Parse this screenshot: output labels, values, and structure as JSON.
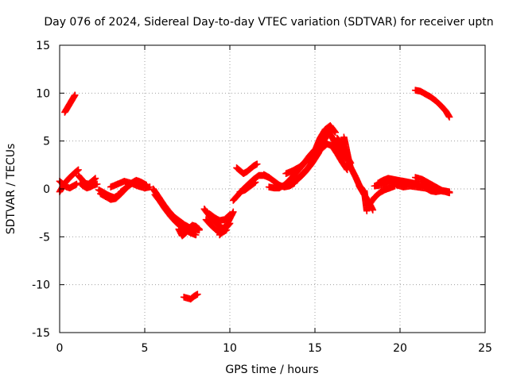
{
  "chart_data": {
    "type": "scatter",
    "title": "Day 076 of 2024, Sidereal Day-to-day VTEC variation (SDTVAR) for receiver uptn",
    "xlabel": "GPS time / hours",
    "ylabel": "SDTVAR / TECUs",
    "xlim": [
      0,
      25
    ],
    "ylim": [
      -15,
      15
    ],
    "x_ticks": [
      0,
      5,
      10,
      15,
      20,
      25
    ],
    "x_tick_labels": [
      "0",
      "5",
      "10",
      "15",
      "20",
      "25"
    ],
    "y_ticks": [
      -15,
      -10,
      -5,
      0,
      5,
      10,
      15
    ],
    "y_tick_labels": [
      "-15",
      "-10",
      "-5",
      "0",
      "5",
      "10",
      "15"
    ],
    "grid": true,
    "marker": "plus",
    "series_color": "#ff0000",
    "tracks": [
      {
        "name": "t1",
        "x": [
          0.0,
          0.3,
          0.6,
          0.9,
          1.1
        ],
        "y": [
          -0.3,
          0.6,
          1.2,
          1.7,
          2.0
        ]
      },
      {
        "name": "t2",
        "x": [
          0.0,
          0.2,
          0.4,
          0.6,
          0.8,
          1.0
        ],
        "y": [
          0.8,
          0.5,
          0.2,
          0.1,
          0.3,
          0.5
        ]
      },
      {
        "name": "t3",
        "x": [
          0.3,
          0.5,
          0.7,
          0.9
        ],
        "y": [
          8.0,
          8.6,
          9.2,
          9.8
        ]
      },
      {
        "name": "t4",
        "x": [
          1.1,
          1.3,
          1.5,
          1.7,
          1.9,
          2.1
        ],
        "y": [
          1.4,
          1.0,
          0.6,
          0.5,
          0.8,
          1.1
        ]
      },
      {
        "name": "t5",
        "x": [
          1.2,
          1.4,
          1.6,
          1.8,
          2.0,
          2.2
        ],
        "y": [
          0.6,
          0.3,
          0.1,
          0.2,
          0.4,
          0.5
        ]
      },
      {
        "name": "t6",
        "x": [
          2.3,
          2.6,
          2.9,
          3.2,
          3.5,
          3.8,
          4.1,
          4.4
        ],
        "y": [
          -0.1,
          -0.4,
          -0.7,
          -0.9,
          -0.6,
          -0.1,
          0.4,
          0.7
        ]
      },
      {
        "name": "t7",
        "x": [
          2.4,
          2.7,
          3.0,
          3.3,
          3.6,
          3.9
        ],
        "y": [
          -0.5,
          -0.8,
          -1.1,
          -1.0,
          -0.5,
          0.1
        ]
      },
      {
        "name": "t8",
        "x": [
          3.0,
          3.4,
          3.8,
          4.2,
          4.6,
          5.0,
          5.3
        ],
        "y": [
          0.2,
          0.5,
          0.8,
          0.6,
          0.3,
          0.1,
          0.2
        ]
      },
      {
        "name": "t9",
        "x": [
          3.6,
          3.9,
          4.2,
          4.5,
          4.8,
          5.1
        ],
        "y": [
          -0.3,
          0.1,
          0.6,
          0.9,
          0.7,
          0.4
        ]
      },
      {
        "name": "t10",
        "x": [
          5.5,
          5.8,
          6.1,
          6.4,
          6.7,
          7.0,
          7.3,
          7.6,
          7.9,
          8.2
        ],
        "y": [
          0.0,
          -0.8,
          -1.6,
          -2.3,
          -2.9,
          -3.3,
          -3.7,
          -4.0,
          -4.2,
          -4.3
        ]
      },
      {
        "name": "t11",
        "x": [
          5.6,
          5.9,
          6.2,
          6.5,
          6.8,
          7.1,
          7.4,
          7.7,
          8.0
        ],
        "y": [
          -0.6,
          -1.3,
          -2.1,
          -2.8,
          -3.4,
          -3.9,
          -4.3,
          -4.6,
          -4.8
        ]
      },
      {
        "name": "t12",
        "x": [
          7.0,
          7.2,
          7.4,
          7.6,
          7.8,
          8.0,
          8.2
        ],
        "y": [
          -4.2,
          -4.9,
          -4.6,
          -4.1,
          -3.8,
          -3.9,
          -4.2
        ]
      },
      {
        "name": "t13",
        "x": [
          7.3,
          7.5,
          7.7,
          7.9,
          8.1
        ],
        "y": [
          -11.3,
          -11.4,
          -11.5,
          -11.2,
          -11.0
        ]
      },
      {
        "name": "t14",
        "x": [
          8.5,
          8.8,
          9.1,
          9.4,
          9.7,
          10.0
        ],
        "y": [
          -2.1,
          -2.8,
          -3.4,
          -3.9,
          -4.2,
          -3.6
        ]
      },
      {
        "name": "t15",
        "x": [
          8.6,
          8.9,
          9.2,
          9.5,
          9.8
        ],
        "y": [
          -3.2,
          -3.8,
          -4.3,
          -4.6,
          -4.3
        ]
      },
      {
        "name": "t16",
        "x": [
          8.8,
          9.1,
          9.4,
          9.7,
          10.0
        ],
        "y": [
          -2.6,
          -3.0,
          -3.3,
          -3.2,
          -2.7
        ]
      },
      {
        "name": "t17",
        "x": [
          9.4,
          9.6,
          9.8,
          10.0,
          10.2
        ],
        "y": [
          -4.8,
          -4.4,
          -3.8,
          -3.1,
          -2.4
        ]
      },
      {
        "name": "t18",
        "x": [
          10.2,
          10.5,
          10.8,
          11.1,
          11.4,
          11.7,
          12.0,
          12.3
        ],
        "y": [
          -1.2,
          -0.6,
          0.0,
          0.5,
          1.0,
          1.4,
          1.4,
          1.2
        ]
      },
      {
        "name": "t19",
        "x": [
          10.4,
          10.6,
          10.8,
          11.0,
          11.2,
          11.4,
          11.6
        ],
        "y": [
          2.2,
          1.9,
          1.6,
          1.8,
          2.1,
          2.4,
          2.6
        ]
      },
      {
        "name": "t20",
        "x": [
          10.6,
          10.9,
          11.2,
          11.5
        ],
        "y": [
          -0.3,
          -0.1,
          0.3,
          0.7
        ]
      },
      {
        "name": "t21",
        "x": [
          12.0,
          12.3,
          12.6,
          12.9,
          13.2,
          13.5,
          13.8
        ],
        "y": [
          1.5,
          1.2,
          0.8,
          0.4,
          0.2,
          0.3,
          0.6
        ]
      },
      {
        "name": "t22",
        "x": [
          12.3,
          12.6,
          12.9,
          13.2,
          13.5,
          13.8,
          14.1,
          14.4,
          14.7,
          15.0
        ],
        "y": [
          0.2,
          0.1,
          0.1,
          0.4,
          0.9,
          1.5,
          2.1,
          2.8,
          3.5,
          4.1
        ]
      },
      {
        "name": "t23",
        "x": [
          13.3,
          13.7,
          14.1,
          14.5,
          14.9,
          15.3,
          15.6
        ],
        "y": [
          1.6,
          1.9,
          2.3,
          2.9,
          3.7,
          4.6,
          5.4
        ]
      },
      {
        "name": "t24",
        "x": [
          13.6,
          14.0,
          14.4,
          14.8,
          15.2,
          15.5,
          15.8
        ],
        "y": [
          0.5,
          1.1,
          1.8,
          2.7,
          3.8,
          5.0,
          5.8
        ]
      },
      {
        "name": "t25",
        "x": [
          14.0,
          14.4,
          14.8,
          15.2,
          15.5,
          15.8
        ],
        "y": [
          1.0,
          1.7,
          2.6,
          3.7,
          5.0,
          6.2
        ]
      },
      {
        "name": "t26",
        "x": [
          14.6,
          15.0,
          15.3,
          15.6,
          15.9,
          16.2
        ],
        "y": [
          2.9,
          4.0,
          5.3,
          6.2,
          6.6,
          5.9
        ]
      },
      {
        "name": "t27",
        "x": [
          15.4,
          15.7,
          16.0,
          16.3,
          16.6,
          16.9
        ],
        "y": [
          4.2,
          4.7,
          4.5,
          3.7,
          2.8,
          2.0
        ]
      },
      {
        "name": "t28",
        "x": [
          15.8,
          16.0,
          16.2,
          16.4,
          16.6,
          16.8
        ],
        "y": [
          6.0,
          5.4,
          4.8,
          4.2,
          3.6,
          3.2
        ]
      },
      {
        "name": "t29",
        "x": [
          16.3,
          16.5,
          16.7,
          16.9,
          17.1
        ],
        "y": [
          5.3,
          4.9,
          4.1,
          3.3,
          2.7
        ]
      },
      {
        "name": "t30",
        "x": [
          16.7,
          16.8,
          16.9,
          17.0,
          17.1
        ],
        "y": [
          5.4,
          4.6,
          3.7,
          2.9,
          2.1
        ]
      },
      {
        "name": "t31",
        "x": [
          17.0,
          17.2,
          17.4,
          17.6,
          17.8
        ],
        "y": [
          2.6,
          1.9,
          1.2,
          0.4,
          -0.1
        ]
      },
      {
        "name": "t32",
        "x": [
          17.6,
          17.8,
          18.0,
          18.2,
          18.4
        ],
        "y": [
          0.3,
          -0.3,
          -0.9,
          -1.5,
          -2.2
        ]
      },
      {
        "name": "t33",
        "x": [
          17.9,
          17.95,
          18.0,
          18.05
        ],
        "y": [
          -0.2,
          -0.9,
          -1.6,
          -2.3
        ]
      },
      {
        "name": "t34",
        "x": [
          18.2,
          18.5,
          18.8,
          19.1,
          19.4,
          19.7
        ],
        "y": [
          -1.6,
          -0.9,
          -0.4,
          -0.1,
          0.1,
          0.3
        ]
      },
      {
        "name": "t35",
        "x": [
          18.5,
          18.9,
          19.3,
          19.7,
          20.1,
          20.5,
          20.9,
          21.3,
          21.7
        ],
        "y": [
          0.3,
          0.4,
          0.6,
          0.8,
          0.7,
          0.6,
          0.5,
          0.5,
          0.4
        ]
      },
      {
        "name": "t36",
        "x": [
          18.7,
          19.0,
          19.3,
          19.6,
          19.9,
          20.2,
          20.5,
          20.8,
          21.1
        ],
        "y": [
          0.6,
          0.9,
          1.1,
          1.0,
          0.9,
          0.8,
          0.7,
          0.6,
          0.5
        ]
      },
      {
        "name": "t37",
        "x": [
          19.8,
          20.2,
          20.6,
          21.0,
          21.4,
          21.8,
          22.2,
          22.6,
          22.9
        ],
        "y": [
          0.4,
          0.2,
          0.3,
          0.2,
          0.1,
          0.0,
          -0.1,
          -0.2,
          -0.3
        ]
      },
      {
        "name": "t38",
        "x": [
          20.9,
          21.3,
          21.7,
          22.1,
          22.5,
          22.9
        ],
        "y": [
          1.2,
          1.0,
          0.6,
          0.2,
          -0.2,
          -0.4
        ]
      },
      {
        "name": "t39",
        "x": [
          21.5,
          21.8,
          22.1,
          22.4,
          22.7,
          22.9
        ],
        "y": [
          0.1,
          -0.2,
          -0.3,
          -0.2,
          -0.3,
          -0.4
        ]
      },
      {
        "name": "t40",
        "x": [
          20.9,
          21.2,
          21.5,
          21.8,
          22.1,
          22.4,
          22.7,
          22.9
        ],
        "y": [
          10.3,
          10.2,
          9.9,
          9.6,
          9.2,
          8.7,
          8.1,
          7.5
        ]
      }
    ]
  }
}
